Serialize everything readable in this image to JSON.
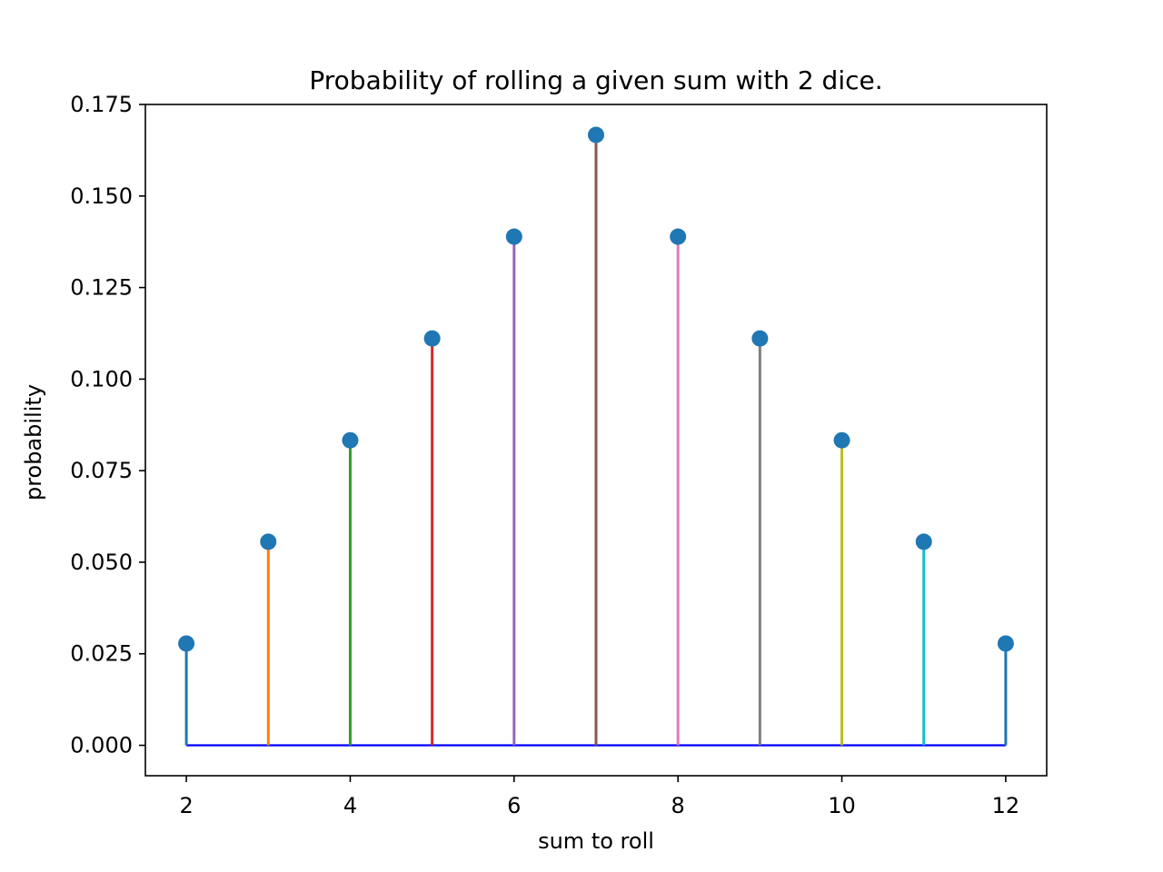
{
  "chart_data": {
    "type": "stem",
    "title": "Probability of rolling a given sum with 2 dice.",
    "xlabel": "sum to roll",
    "ylabel": "probability",
    "x": [
      2,
      3,
      4,
      5,
      6,
      7,
      8,
      9,
      10,
      11,
      12
    ],
    "y": [
      0.0278,
      0.0556,
      0.0833,
      0.1111,
      0.1389,
      0.1667,
      0.1389,
      0.1111,
      0.0833,
      0.0556,
      0.0278
    ],
    "xlim": [
      1.5,
      12.5
    ],
    "ylim": [
      -0.0083,
      0.175
    ],
    "xticks": [
      2,
      4,
      6,
      8,
      10,
      12
    ],
    "xtick_labels": [
      "2",
      "4",
      "6",
      "8",
      "10",
      "12"
    ],
    "yticks": [
      0,
      0.025,
      0.05,
      0.075,
      0.1,
      0.125,
      0.15,
      0.175
    ],
    "ytick_labels": [
      "0.000",
      "0.025",
      "0.050",
      "0.075",
      "0.100",
      "0.125",
      "0.150",
      "0.175"
    ],
    "stem_colors": [
      "#1f77b4",
      "#ff7f0e",
      "#2ca02c",
      "#d62728",
      "#9467bd",
      "#8c564b",
      "#e377c2",
      "#7f7f7f",
      "#bcbd22",
      "#17becf",
      "#1f77b4"
    ],
    "marker_color": "#1f77b4",
    "baseline_color": "#0000ff",
    "grid": false,
    "legend": "none"
  }
}
